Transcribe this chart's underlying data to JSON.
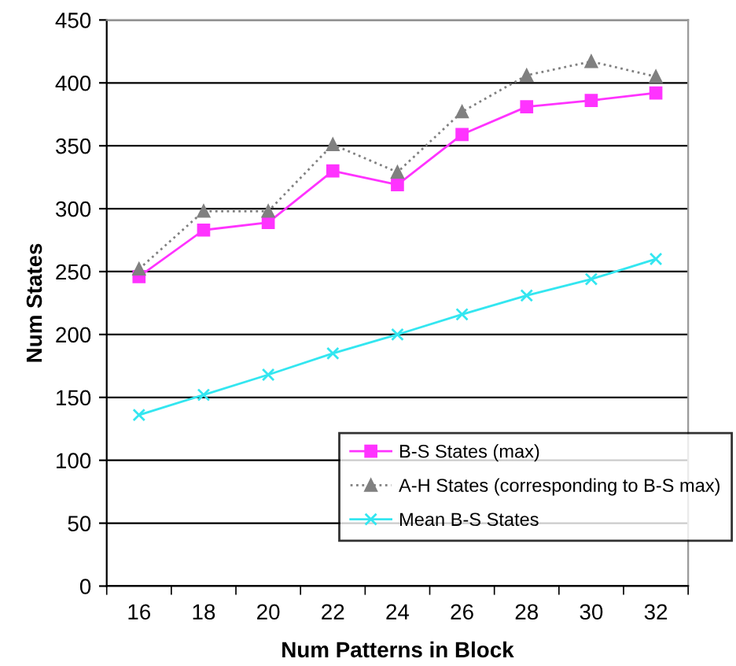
{
  "chart_data": {
    "type": "line",
    "xlabel": "Num Patterns in Block",
    "ylabel": "Num States",
    "categories": [
      "16",
      "18",
      "20",
      "22",
      "24",
      "26",
      "28",
      "30",
      "32"
    ],
    "series": [
      {
        "name": "B-S States (max)",
        "color": "#ff33ff",
        "marker": "square",
        "line_style": "solid",
        "values": [
          246,
          283,
          289,
          330,
          319,
          359,
          381,
          386,
          392
        ]
      },
      {
        "name": "A-H States (corresponding to B-S max)",
        "color": "#808080",
        "marker": "triangle",
        "line_style": "dotted",
        "values": [
          252,
          298,
          298,
          351,
          329,
          377,
          406,
          417,
          405
        ]
      },
      {
        "name": "Mean B-S States",
        "color": "#33e6f0",
        "marker": "cross",
        "line_style": "solid",
        "values": [
          136,
          152,
          168,
          185,
          200,
          216,
          231,
          244,
          260
        ]
      }
    ],
    "ylim": [
      0,
      450
    ],
    "yticks": [
      0,
      50,
      100,
      150,
      200,
      250,
      300,
      350,
      400,
      450
    ],
    "grid": "y",
    "legend": "right"
  }
}
